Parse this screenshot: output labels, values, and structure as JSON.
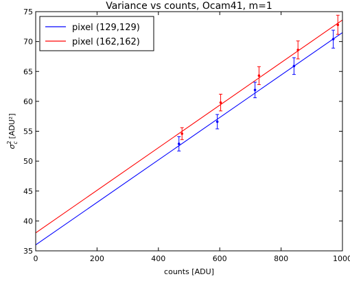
{
  "chart_data": {
    "type": "scatter",
    "title": "Variance vs counts, Ocam41, m=1",
    "xlabel": "counts [ADU]",
    "ylabel_main": "σ",
    "ylabel_sub": "c",
    "ylabel_sup": "2",
    "ylabel_unit": " [ADU²]",
    "xlim": [
      0,
      1000
    ],
    "ylim": [
      35,
      75
    ],
    "x_ticks": [
      0,
      200,
      400,
      600,
      800,
      1000
    ],
    "y_ticks": [
      35,
      40,
      45,
      50,
      55,
      60,
      65,
      70,
      75
    ],
    "x_tick_labels": [
      "0",
      "200",
      "400",
      "600",
      "800",
      "1000"
    ],
    "y_tick_labels": [
      "35",
      "40",
      "45",
      "50",
      "55",
      "60",
      "65",
      "70",
      "75"
    ],
    "grid": false,
    "legend_position": "top-left",
    "series": [
      {
        "name": "pixel (129,129)",
        "color": "#0000ff",
        "points": [
          {
            "x": 467,
            "y": 52.9,
            "err": 1.2
          },
          {
            "x": 592,
            "y": 56.6,
            "err": 1.2
          },
          {
            "x": 715,
            "y": 61.9,
            "err": 1.3
          },
          {
            "x": 842,
            "y": 65.9,
            "err": 1.4
          },
          {
            "x": 970,
            "y": 70.4,
            "err": 1.5
          }
        ],
        "fit": {
          "x0": 0,
          "y0": 36.0,
          "x1": 1000,
          "y1": 71.5
        }
      },
      {
        "name": "pixel (162,162)",
        "color": "#ff0000",
        "points": [
          {
            "x": 477,
            "y": 54.6,
            "err": 1.0
          },
          {
            "x": 603,
            "y": 59.8,
            "err": 1.4
          },
          {
            "x": 728,
            "y": 64.3,
            "err": 1.5
          },
          {
            "x": 855,
            "y": 68.6,
            "err": 1.5
          },
          {
            "x": 985,
            "y": 72.8,
            "err": 1.6
          }
        ],
        "fit": {
          "x0": 0,
          "y0": 38.0,
          "x1": 1000,
          "y1": 73.6
        }
      }
    ]
  }
}
